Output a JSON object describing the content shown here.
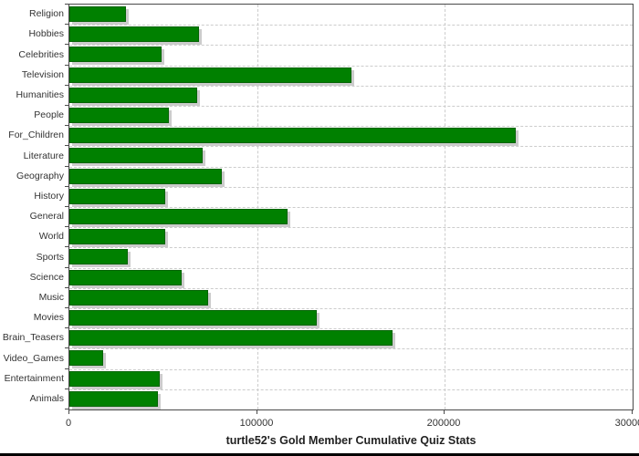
{
  "chart_data": {
    "type": "bar",
    "orientation": "horizontal",
    "title": "turtle52's Gold Member Cumulative Quiz Stats",
    "categories": [
      "Religion",
      "Hobbies",
      "Celebrities",
      "Television",
      "Humanities",
      "People",
      "For_Children",
      "Literature",
      "Geography",
      "History",
      "General",
      "World",
      "Sports",
      "Science",
      "Music",
      "Movies",
      "Brain_Teasers",
      "Video_Games",
      "Entertainment",
      "Animals"
    ],
    "values": [
      30000,
      69000,
      49000,
      150000,
      68000,
      53000,
      238000,
      71000,
      81000,
      51000,
      116000,
      51000,
      31000,
      60000,
      74000,
      132000,
      172000,
      18000,
      48000,
      47000
    ],
    "xlabel": "",
    "ylabel": "",
    "xlim": [
      0,
      300000
    ],
    "x_ticks": [
      0,
      100000,
      200000,
      300000
    ],
    "x_tick_labels": [
      "0",
      "100000",
      "200000",
      "300000"
    ],
    "grid": "dashed",
    "legend": "none",
    "colors": {
      "bar_fill": "#008000",
      "bar_border": "#046404",
      "bar_shadow": "#cccccc",
      "gridline": "#cccccc",
      "axis": "#4a4a4a",
      "tick_text": "#333333",
      "title_text": "#222222",
      "background": "#ffffff",
      "bottom_edge": "#000000"
    }
  }
}
